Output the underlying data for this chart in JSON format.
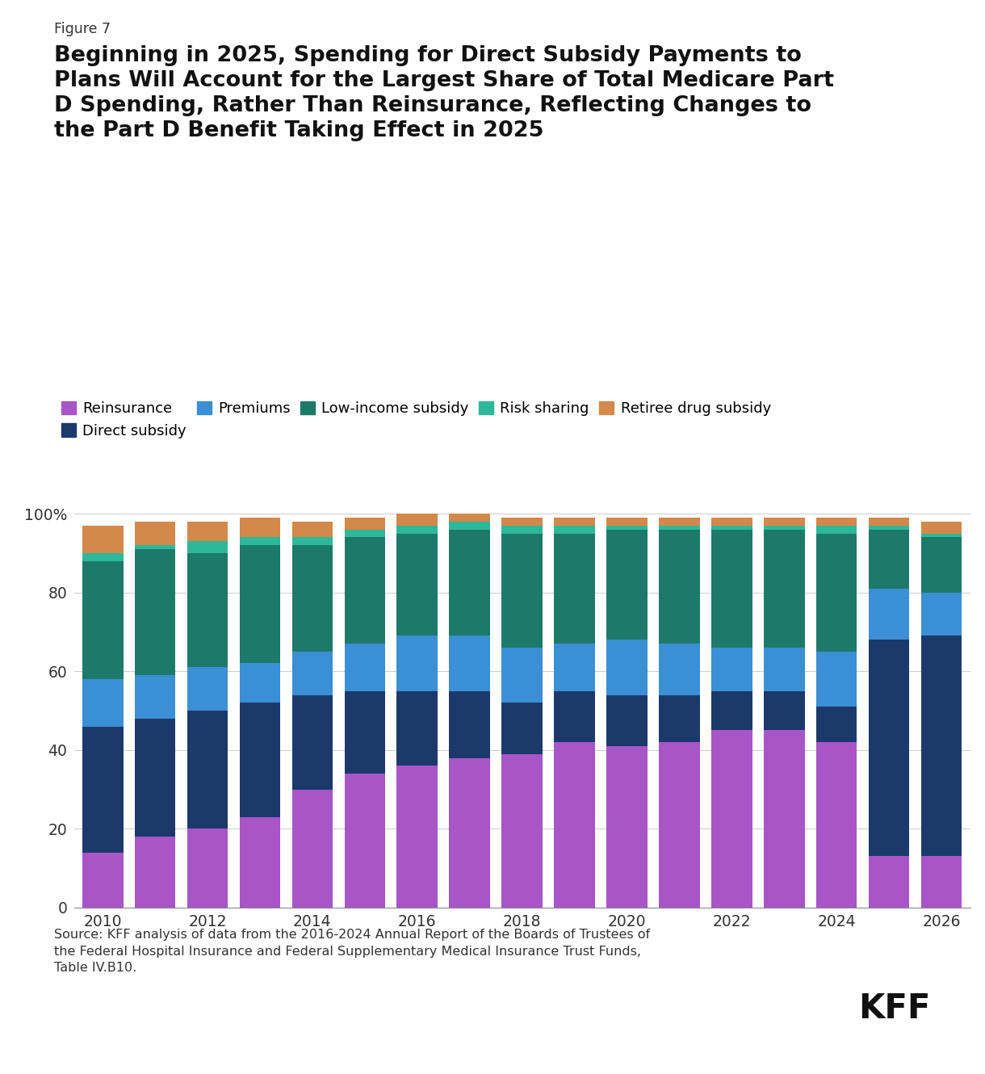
{
  "years": [
    2010,
    2011,
    2012,
    2013,
    2014,
    2015,
    2016,
    2017,
    2018,
    2019,
    2020,
    2021,
    2022,
    2023,
    2024,
    2025,
    2026
  ],
  "reinsurance": [
    14,
    18,
    20,
    23,
    30,
    34,
    36,
    38,
    39,
    42,
    41,
    42,
    45,
    45,
    42,
    13,
    13
  ],
  "direct_subsidy": [
    32,
    30,
    30,
    29,
    24,
    21,
    19,
    17,
    13,
    13,
    13,
    12,
    10,
    10,
    9,
    55,
    56
  ],
  "premiums": [
    12,
    11,
    11,
    10,
    11,
    12,
    14,
    14,
    14,
    12,
    14,
    13,
    11,
    11,
    14,
    13,
    11
  ],
  "low_income_subsidy": [
    30,
    32,
    29,
    30,
    27,
    27,
    26,
    27,
    29,
    28,
    28,
    29,
    30,
    30,
    30,
    15,
    14
  ],
  "risk_sharing": [
    2,
    1,
    3,
    2,
    2,
    2,
    2,
    2,
    2,
    2,
    1,
    1,
    1,
    1,
    2,
    1,
    1
  ],
  "retiree_drug_subsidy": [
    7,
    6,
    5,
    5,
    4,
    3,
    3,
    2,
    2,
    2,
    2,
    2,
    2,
    2,
    2,
    2,
    3
  ],
  "colors": {
    "reinsurance": "#A855C8",
    "direct_subsidy": "#1B3A6B",
    "premiums": "#3B8FD4",
    "low_income_subsidy": "#1D7A6A",
    "risk_sharing": "#2DB89A",
    "retiree_drug_subsidy": "#D4884A"
  },
  "legend_labels": {
    "reinsurance": "Reinsurance",
    "direct_subsidy": "Direct subsidy",
    "premiums": "Premiums",
    "low_income_subsidy": "Low-income subsidy",
    "risk_sharing": "Risk sharing",
    "retiree_drug_subsidy": "Retiree drug subsidy"
  },
  "figure_label": "Figure 7",
  "title_line1": "Beginning in 2025, Spending for Direct Subsidy Payments to",
  "title_line2": "Plans Will Account for the Largest Share of Total Medicare Part",
  "title_line3": "D Spending, Rather Than Reinsurance, Reflecting Changes to",
  "title_line4": "the Part D Benefit Taking Effect in 2025",
  "source_text": "Source: KFF analysis of data from the 2016-2024 Annual Report of the Boards of Trustees of\nthe Federal Hospital Insurance and Federal Supplementary Medical Insurance Trust Funds,\nTable IV.B10.",
  "ytick_values": [
    0,
    20,
    40,
    60,
    80,
    100
  ],
  "ytick_labels": [
    "0",
    "20",
    "40",
    "60",
    "80",
    "100%"
  ],
  "background_color": "#FFFFFF"
}
